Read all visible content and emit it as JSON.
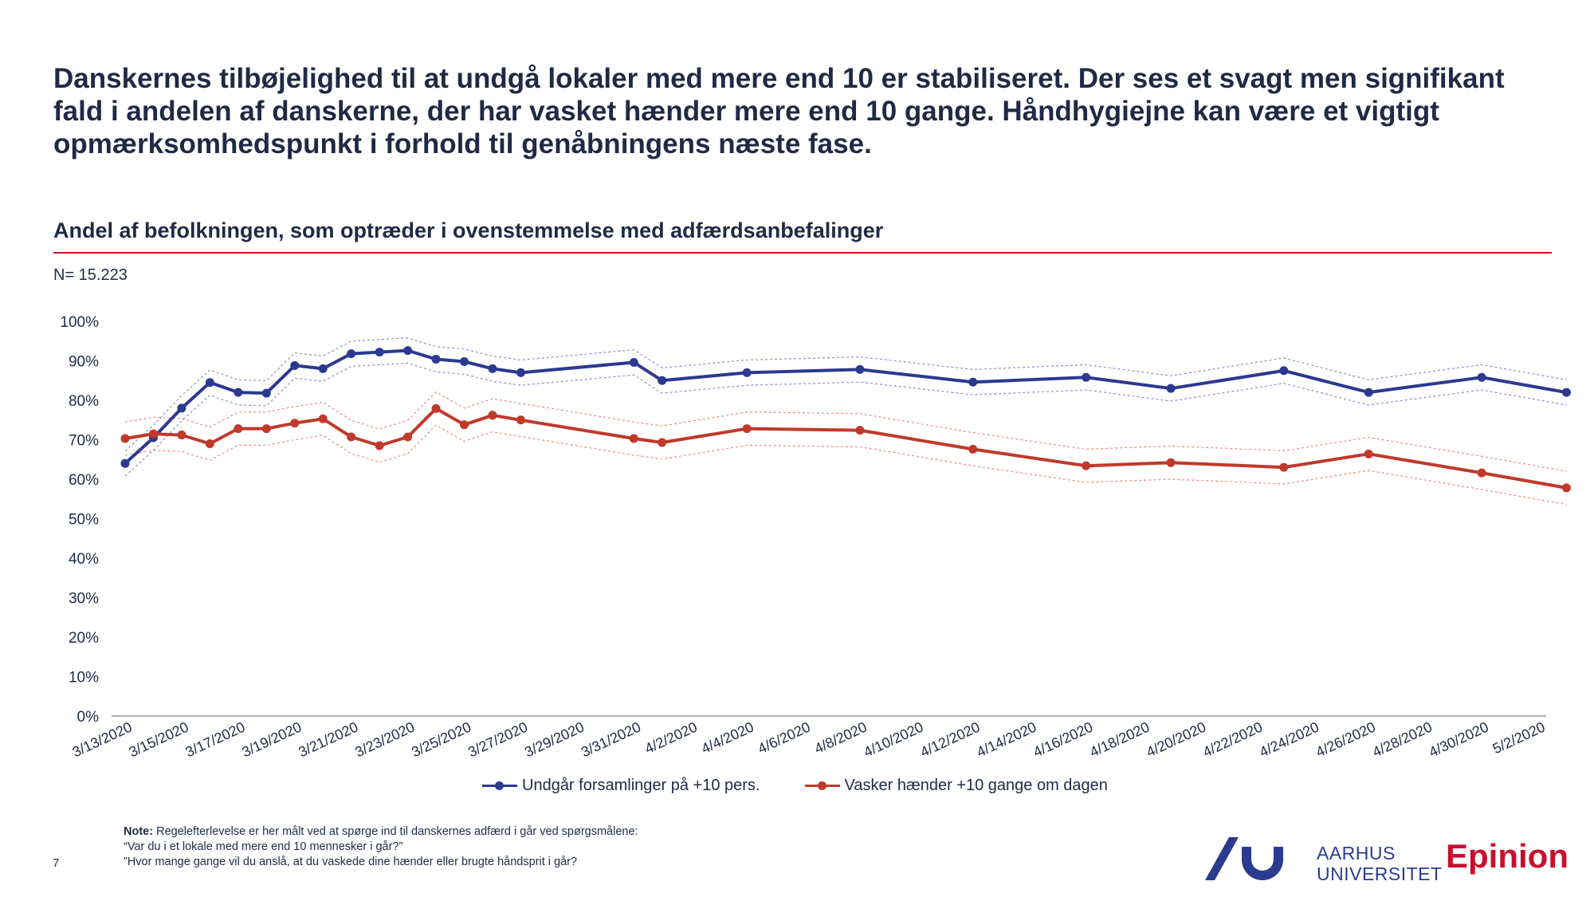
{
  "headline": "Danskernes tilbøjelighed til at undgå lokaler med mere end 10 er stabiliseret. Der ses et svagt men signifikant fald i andelen af danskerne, der har vasket hænder mere end 10 gange. Håndhygiejne kan være et vigtigt opmærksomhedspunkt i forhold til genåbningens næste fase.",
  "subtitle": "Andel af befolkningen, som optræder i ovenstemmelse med adfærdsanbefalinger",
  "n_label": "N= 15.223",
  "note": {
    "label": "Note:",
    "line1": "Regelefterlevelse er her målt ved at spørge ind til danskernes adfærd i går ved spørgsmålene:",
    "line2": "“Var du i et lokale med mere end 10 mennesker i går?”",
    "line3": "”Hvor mange gange vil du anslå, at du vaskede dine hænder eller brugte håndsprit i går?"
  },
  "page_number": "7",
  "logos": {
    "university": "AARHUS UNIVERSITET",
    "university_line1": "AARHUS",
    "university_line2": "UNIVERSITET",
    "epinion": "Epinion"
  },
  "colors": {
    "blue": "#2b3990",
    "red": "#c0392b",
    "title": "#1f2a44",
    "rule": "#c8102e"
  },
  "chart_data": {
    "type": "line",
    "ylim": [
      0,
      100
    ],
    "ytick_labels": [
      "0%",
      "10%",
      "20%",
      "30%",
      "40%",
      "50%",
      "60%",
      "70%",
      "80%",
      "90%",
      "100%"
    ],
    "x_start": "2020-03-13",
    "x_end": "2020-05-02",
    "xtick_labels": [
      "3/13/2020",
      "3/15/2020",
      "3/17/2020",
      "3/19/2020",
      "3/21/2020",
      "3/23/2020",
      "3/25/2020",
      "3/27/2020",
      "3/29/2020",
      "3/31/2020",
      "4/2/2020",
      "4/4/2020",
      "4/6/2020",
      "4/8/2020",
      "4/10/2020",
      "4/12/2020",
      "4/14/2020",
      "4/16/2020",
      "4/18/2020",
      "4/20/2020",
      "4/22/2020",
      "4/24/2020",
      "4/26/2020",
      "4/28/2020",
      "4/30/2020",
      "5/2/2020"
    ],
    "grid": false,
    "legend_position": "bottom",
    "series": [
      {
        "name": "Undgår forsamlinger på +10 pers.",
        "color": "#2b3990",
        "x": [
          "2020-03-13",
          "2020-03-14",
          "2020-03-15",
          "2020-03-16",
          "2020-03-17",
          "2020-03-18",
          "2020-03-19",
          "2020-03-20",
          "2020-03-21",
          "2020-03-22",
          "2020-03-23",
          "2020-03-24",
          "2020-03-25",
          "2020-03-26",
          "2020-03-27",
          "2020-03-31",
          "2020-04-01",
          "2020-04-04",
          "2020-04-08",
          "2020-04-12",
          "2020-04-16",
          "2020-04-19",
          "2020-04-23",
          "2020-04-26",
          "2020-04-30",
          "2020-05-03"
        ],
        "values": [
          64,
          70.5,
          78,
          84.5,
          82,
          81.8,
          88.8,
          88,
          91.8,
          92.2,
          92.6,
          90.4,
          89.8,
          88,
          87,
          89.6,
          85,
          87,
          87.8,
          84.6,
          85.8,
          83,
          87.5,
          82,
          85.8,
          82
        ],
        "band_offset": 3.2
      },
      {
        "name": "Vasker hænder +10 gange om dagen",
        "color": "#c0392b",
        "x": [
          "2020-03-13",
          "2020-03-14",
          "2020-03-15",
          "2020-03-16",
          "2020-03-17",
          "2020-03-18",
          "2020-03-19",
          "2020-03-20",
          "2020-03-21",
          "2020-03-22",
          "2020-03-23",
          "2020-03-24",
          "2020-03-25",
          "2020-03-26",
          "2020-03-27",
          "2020-03-31",
          "2020-04-01",
          "2020-04-04",
          "2020-04-08",
          "2020-04-12",
          "2020-04-16",
          "2020-04-19",
          "2020-04-23",
          "2020-04-26",
          "2020-04-30",
          "2020-05-03"
        ],
        "values": [
          70.3,
          71.5,
          71.2,
          69,
          72.8,
          72.8,
          74.2,
          75.3,
          70.7,
          68.5,
          70.7,
          77.9,
          73.8,
          76.2,
          75,
          70.3,
          69.3,
          72.8,
          72.4,
          67.6,
          63.4,
          64.2,
          63,
          66.4,
          61.6,
          57.8
        ],
        "band_offset": 4.2
      }
    ]
  }
}
